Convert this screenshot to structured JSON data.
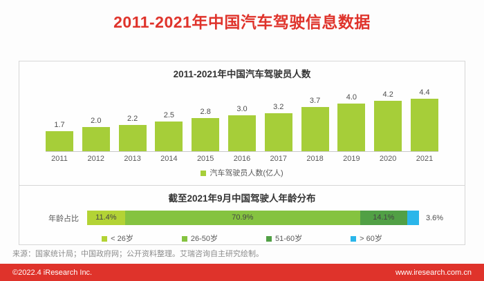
{
  "page": {
    "title": "2011-2021年中国汽车驾驶信息数据",
    "source_note": "来源：国家统计局；中国政府网；公开资料整理。艾瑞咨询自主研究绘制。",
    "footer": {
      "left": "©2022.4 iResearch Inc.",
      "right": "www.iresearch.com.cn"
    }
  },
  "colors": {
    "accent_red": "#df332b",
    "bar_green": "#a6ce39",
    "text_dark": "#333333",
    "text_gray": "#595959",
    "panel_border": "#d6d6d6",
    "footer_text": "#ffffff"
  },
  "chart_data": [
    {
      "type": "bar",
      "title": "2011-2021年中国汽车驾驶员人数",
      "categories": [
        "2011",
        "2012",
        "2013",
        "2014",
        "2015",
        "2016",
        "2017",
        "2018",
        "2019",
        "2020",
        "2021"
      ],
      "values": [
        1.7,
        2.0,
        2.2,
        2.5,
        2.8,
        3.0,
        3.2,
        3.7,
        4.0,
        4.2,
        4.4
      ],
      "value_labels": [
        "1.7",
        "2.0",
        "2.2",
        "2.5",
        "2.8",
        "3.0",
        "3.2",
        "3.7",
        "4.0",
        "4.2",
        "4.4"
      ],
      "bar_color": "#a6ce39",
      "legend": [
        "汽车驾驶员人数(亿人)"
      ],
      "legend_position": "bottom",
      "xlabel": "",
      "ylabel": "",
      "ylim": [
        0,
        4.4
      ],
      "grid": false
    },
    {
      "type": "bar",
      "subtype": "horizontal-stacked",
      "title": "截至2021年9月中国驾驶人年龄分布",
      "row_label": "年龄占比",
      "segments": [
        {
          "label": "< 26岁",
          "value": 11.4,
          "display": "11.4%",
          "color": "#b3d335",
          "label_inside": true
        },
        {
          "label": "26-50岁",
          "value": 70.9,
          "display": "70.9%",
          "color": "#85c340",
          "label_inside": true
        },
        {
          "label": "51-60岁",
          "value": 14.1,
          "display": "14.1%",
          "color": "#51a045",
          "label_inside": true
        },
        {
          "label": "> 60岁",
          "value": 3.6,
          "display": "3.6%",
          "color": "#2ab6ea",
          "label_inside": false
        }
      ],
      "legend_position": "bottom"
    }
  ]
}
